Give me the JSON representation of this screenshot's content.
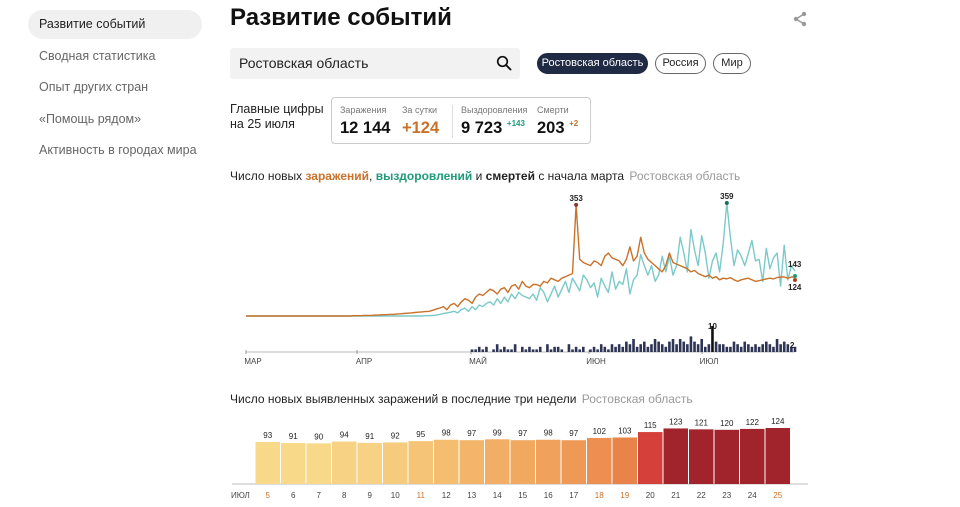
{
  "sidebar": {
    "items": [
      {
        "label": "Развитие событий",
        "active": true
      },
      {
        "label": "Сводная статистика",
        "active": false
      },
      {
        "label": "Опыт других стран",
        "active": false
      },
      {
        "label": "«Помощь рядом»",
        "active": false
      },
      {
        "label": "Активность в городах мира",
        "active": false
      }
    ]
  },
  "page": {
    "title": "Развитие событий",
    "share_icon": "share-icon"
  },
  "search": {
    "value": "Ростовская область",
    "icon": "search-icon"
  },
  "region_pills": [
    {
      "label": "Ростовская область",
      "active": true
    },
    {
      "label": "Россия",
      "active": false
    },
    {
      "label": "Мир",
      "active": false
    }
  ],
  "summary": {
    "label_line1": "Главные цифры",
    "label_line2": "на 25 июля",
    "infections_caption": "Заражения",
    "infections_value": "12 144",
    "day_caption": "За сутки",
    "day_value": "+124",
    "recovered_caption": "Выздоровления",
    "recovered_value": "9 723",
    "recovered_delta": "+143",
    "deaths_caption": "Смерти",
    "deaths_value": "203",
    "deaths_delta": "+2"
  },
  "colors": {
    "infections": "#c8722a",
    "recoveries": "#7cc9c9",
    "deaths": "#2d3454",
    "dark_bar": "#a1232b",
    "accent_navy": "#1f2a44"
  },
  "chart1_title": {
    "prefix": "Число новых",
    "infections": "заражений",
    "comma": ",",
    "recoveries": "выздоровлений",
    "and": "и",
    "deaths": "смертей",
    "suffix": "с начала марта",
    "region": "Ростовская область"
  },
  "chart2_title": {
    "text": "Число новых выявленных заражений в последние три недели",
    "region": "Ростовская область"
  },
  "chart_data": [
    {
      "type": "line",
      "x_ticks": [
        "МАР",
        "АПР",
        "МАЙ",
        "ИЮН",
        "ИЮЛ"
      ],
      "series": [
        {
          "name": "заражений",
          "values": [
            0,
            0,
            0,
            0,
            0,
            0,
            0,
            0,
            0,
            0,
            0,
            0,
            0,
            0,
            0,
            0,
            0,
            0,
            0,
            0,
            0,
            0,
            0,
            0,
            0,
            0,
            0,
            0,
            0,
            0,
            1,
            1,
            1,
            2,
            2,
            2,
            3,
            3,
            4,
            4,
            5,
            5,
            6,
            7,
            8,
            9,
            10,
            11,
            12,
            13,
            14,
            15,
            18,
            22,
            25,
            30,
            20,
            35,
            40,
            30,
            45,
            55,
            50,
            40,
            60,
            70,
            65,
            75,
            85,
            80,
            70,
            85,
            90,
            75,
            95,
            100,
            85,
            110,
            95,
            90,
            100,
            100,
            95,
            110,
            105,
            120,
            115,
            110,
            120,
            125,
            130,
            135,
            353,
            180,
            170,
            165,
            160,
            175,
            170,
            160,
            190,
            200,
            185,
            180,
            175,
            160,
            180,
            220,
            175,
            190,
            250,
            200,
            180,
            170,
            160,
            150,
            140,
            160,
            200,
            170,
            165,
            160,
            155,
            150,
            140,
            145,
            135,
            130,
            125,
            130,
            120,
            125,
            115,
            120,
            118,
            122,
            115,
            110,
            115,
            118,
            120,
            115,
            110,
            112,
            115,
            118,
            120,
            118,
            122,
            124,
            124,
            120,
            124,
            124
          ]
        },
        {
          "name": "выздоровлений",
          "values": [
            0,
            0,
            0,
            0,
            0,
            0,
            0,
            0,
            0,
            0,
            0,
            0,
            0,
            0,
            0,
            0,
            0,
            0,
            0,
            0,
            0,
            0,
            0,
            0,
            0,
            0,
            0,
            0,
            0,
            0,
            0,
            0,
            0,
            0,
            0,
            0,
            0,
            0,
            0,
            0,
            0,
            0,
            0,
            0,
            0,
            0,
            0,
            0,
            0,
            0,
            1,
            1,
            2,
            3,
            5,
            8,
            10,
            12,
            15,
            10,
            20,
            25,
            15,
            30,
            20,
            35,
            30,
            40,
            45,
            35,
            55,
            40,
            60,
            45,
            70,
            55,
            75,
            65,
            60,
            55,
            70,
            50,
            90,
            75,
            45,
            70,
            95,
            60,
            85,
            110,
            75,
            120,
            100,
            80,
            130,
            115,
            90,
            105,
            60,
            120,
            95,
            75,
            140,
            85,
            110,
            100,
            150,
            70,
            115,
            130,
            195,
            160,
            130,
            160,
            110,
            130,
            190,
            140,
            190,
            130,
            160,
            250,
            200,
            140,
            275,
            210,
            160,
            255,
            200,
            120,
            175,
            200,
            140,
            230,
            359,
            250,
            160,
            210,
            190,
            160,
            200,
            240,
            175,
            180,
            110,
            215,
            150,
            185,
            200,
            95,
            225,
            115,
            160,
            143
          ]
        },
        {
          "name": "смертей",
          "values": [
            0,
            0,
            0,
            0,
            0,
            0,
            0,
            0,
            0,
            0,
            0,
            0,
            0,
            0,
            0,
            0,
            0,
            0,
            0,
            0,
            0,
            0,
            0,
            0,
            0,
            0,
            0,
            0,
            0,
            0,
            0,
            0,
            0,
            0,
            0,
            0,
            0,
            0,
            0,
            0,
            0,
            0,
            0,
            0,
            0,
            0,
            0,
            0,
            0,
            0,
            0,
            0,
            0,
            0,
            0,
            0,
            0,
            0,
            0,
            0,
            0,
            0,
            0,
            1,
            1,
            2,
            1,
            2,
            0,
            1,
            3,
            1,
            2,
            1,
            1,
            3,
            0,
            2,
            1,
            2,
            1,
            1,
            2,
            0,
            3,
            1,
            2,
            2,
            1,
            0,
            3,
            1,
            2,
            1,
            2,
            0,
            1,
            2,
            1,
            3,
            2,
            1,
            3,
            2,
            3,
            2,
            4,
            3,
            5,
            2,
            3,
            4,
            2,
            3,
            5,
            4,
            3,
            2,
            4,
            5,
            3,
            5,
            4,
            3,
            6,
            4,
            3,
            5,
            2,
            3,
            10,
            4,
            3,
            3,
            2,
            2,
            4,
            3,
            2,
            4,
            3,
            2,
            3,
            2,
            3,
            4,
            3,
            2,
            5,
            3,
            4,
            3,
            2,
            2
          ]
        }
      ],
      "annotations": [
        {
          "label": "353",
          "series": "заражений",
          "value": 353
        },
        {
          "label": "359",
          "series": "выздоровлений",
          "value": 359
        },
        {
          "label": "10",
          "series": "смертей",
          "value": 10
        },
        {
          "label": "143",
          "series": "выздоровлений",
          "value": 143
        },
        {
          "label": "124",
          "series": "заражений",
          "value": 124
        },
        {
          "label": "2",
          "series": "смертей",
          "value": 2
        }
      ]
    },
    {
      "type": "bar",
      "x_label": "ИЮЛ",
      "categories": [
        "5",
        "6",
        "7",
        "8",
        "9",
        "10",
        "11",
        "12",
        "13",
        "14",
        "15",
        "16",
        "17",
        "18",
        "19",
        "20",
        "21",
        "22",
        "23",
        "24",
        "25"
      ],
      "values": [
        93,
        91,
        90,
        94,
        91,
        92,
        95,
        98,
        97,
        99,
        97,
        98,
        97,
        102,
        103,
        115,
        123,
        121,
        120,
        122,
        124
      ],
      "colors": [
        "#f8d98a",
        "#f8d98a",
        "#f8d98a",
        "#f7d285",
        "#f7d285",
        "#f6cb7e",
        "#f5c477",
        "#f4bd70",
        "#f3b56a",
        "#f2ae64",
        "#f1a85f",
        "#f0a15b",
        "#ee9a56",
        "#ec8f50",
        "#e8844a",
        "#d6403a",
        "#a1232b",
        "#a1232b",
        "#a1232b",
        "#a1232b",
        "#a1232b"
      ],
      "highlight_tick_color": "#c8722a",
      "highlighted_ticks": [
        "5",
        "11",
        "18",
        "19",
        "25"
      ]
    }
  ]
}
